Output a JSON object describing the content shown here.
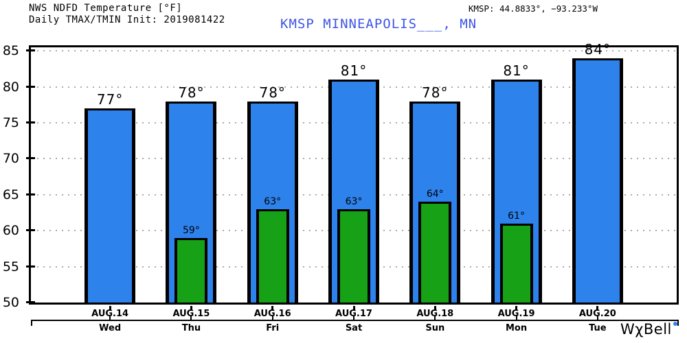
{
  "header": {
    "title_line1": "NWS NDFD Temperature [°F]",
    "title_line2": "Daily TMAX/TMIN Init: 2019081422",
    "coords": "KMSP: 44.8833°, −93.233°W",
    "station_line": "KMSP MINNEAPOLIS___, MN",
    "station_color": "#3C55E6"
  },
  "branding": {
    "logo_text": "WχBell",
    "logo_dot_color": "#2E82EC"
  },
  "chart_data": {
    "type": "bar",
    "title": "NWS NDFD Temperature [°F]",
    "subtitle": "Daily TMAX/TMIN Init: 2019081422",
    "categories": [
      "AUG.14",
      "AUG.15",
      "AUG.16",
      "AUG.17",
      "AUG.18",
      "AUG.19",
      "AUG.20"
    ],
    "weekdays": [
      "Wed",
      "Thu",
      "Fri",
      "Sat",
      "Sun",
      "Mon",
      "Tue"
    ],
    "series": [
      {
        "name": "TMAX",
        "color": "#2E82EC",
        "values": [
          77,
          78,
          78,
          81,
          78,
          81,
          84
        ]
      },
      {
        "name": "TMIN",
        "color": "#16A116",
        "values": [
          null,
          59,
          63,
          63,
          64,
          61,
          null
        ]
      }
    ],
    "unit": "°",
    "ylim": [
      50,
      85.5
    ],
    "yticks": [
      50,
      55,
      60,
      65,
      70,
      75,
      80,
      85
    ],
    "grid": "horizontal-dotted",
    "grid_color": "#AAAAAA",
    "legend": "none"
  }
}
